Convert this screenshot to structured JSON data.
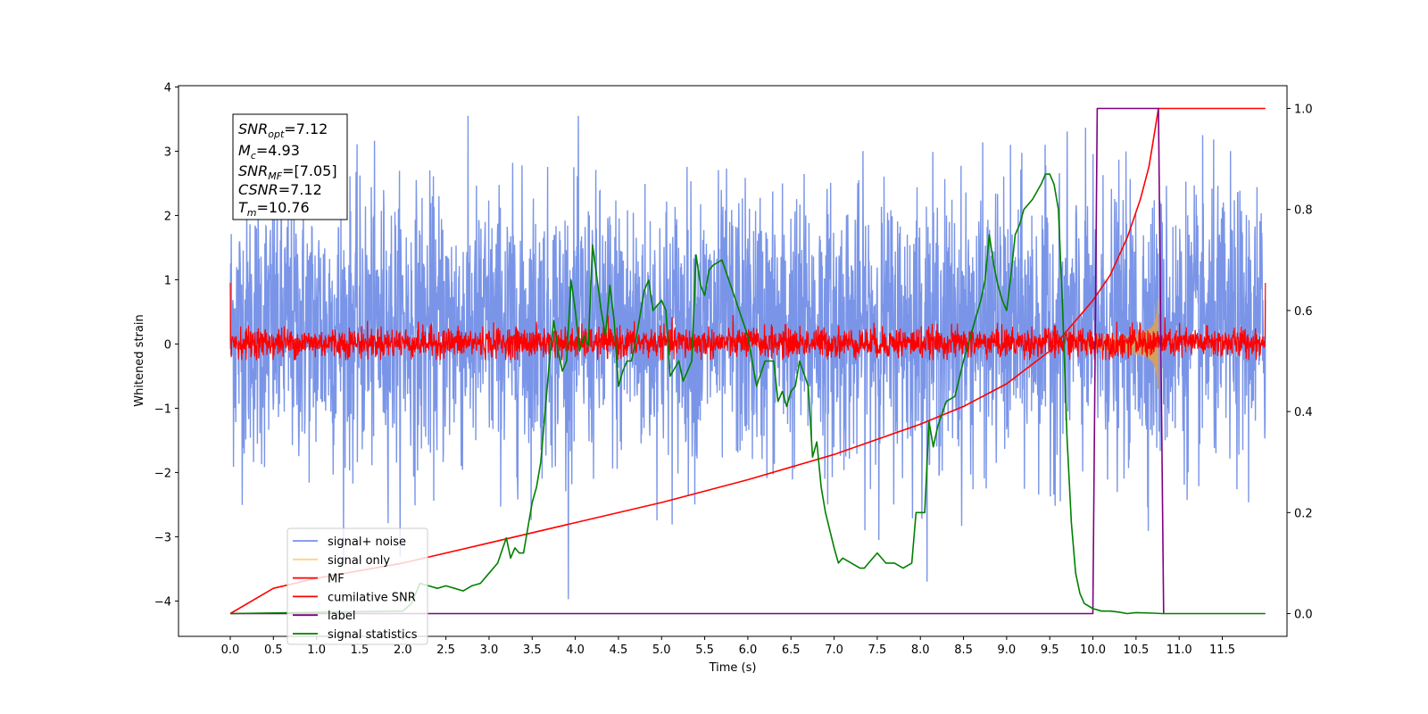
{
  "chart_data": {
    "type": "line",
    "xlabel": "Time (s)",
    "ylabel": "Whitened strain",
    "xlim": [
      -0.6,
      12.25
    ],
    "ylim": [
      -4.55,
      4.02
    ],
    "y2lim": [
      -0.045,
      1.045
    ],
    "x_ticks": [
      0.0,
      0.5,
      1.0,
      1.5,
      2.0,
      2.5,
      3.0,
      3.5,
      4.0,
      4.5,
      5.0,
      5.5,
      6.0,
      6.5,
      7.0,
      7.5,
      8.0,
      8.5,
      9.0,
      9.5,
      10.0,
      10.5,
      11.0,
      11.5
    ],
    "x_tick_labels": [
      "0.0",
      "0.5",
      "1.0",
      "1.5",
      "2.0",
      "2.5",
      "3.0",
      "3.5",
      "4.0",
      "4.5",
      "5.0",
      "5.5",
      "6.0",
      "6.5",
      "7.0",
      "7.5",
      "8.0",
      "8.5",
      "9.0",
      "9.5",
      "10.0",
      "10.5",
      "11.0",
      "11.5"
    ],
    "y_ticks": [
      4,
      3,
      2,
      1,
      0,
      -1,
      -2,
      -3,
      -4
    ],
    "y_tick_labels": [
      "4",
      "3",
      "2",
      "1",
      "0",
      "−1",
      "−2",
      "−3",
      "−4"
    ],
    "y2_ticks": [
      1.0,
      0.8,
      0.6,
      0.4,
      0.2,
      0.0
    ],
    "y2_tick_labels": [
      "1.0",
      "0.8",
      "0.6",
      "0.4",
      "0.2",
      "0.0"
    ],
    "info_box": {
      "snr_opt_main": "SNR",
      "snr_opt_sub": "opt",
      "snr_opt_val": "=7.12",
      "mc_main": "M",
      "mc_sub": "c",
      "mc_val": "=4.93",
      "snr_mf_main": "SNR",
      "snr_mf_sub": "MF",
      "snr_mf_val": "=[7.05]",
      "csnr_main": "CSNR",
      "csnr_val": "=7.12",
      "tm_main": "T",
      "tm_sub": "m",
      "tm_val": "=10.76"
    },
    "legend": {
      "placement": "lower-left",
      "entries": [
        {
          "label": "signal+ noise",
          "color": "#7793e8"
        },
        {
          "label": "signal only",
          "color": "#ffd27f"
        },
        {
          "label": "MF",
          "color": "#ff0000"
        },
        {
          "label": "cumilative SNR",
          "color": "#ff0000"
        },
        {
          "label": "label",
          "color": "#800080"
        },
        {
          "label": "signal statistics",
          "color": "#008000"
        }
      ]
    },
    "series": [
      {
        "name": "signal+ noise",
        "axis": "left",
        "color": "#7793e8",
        "style": "noise",
        "x_range": [
          0.0,
          12.0
        ],
        "y_range": [
          -4.15,
          3.55
        ]
      },
      {
        "name": "signal only",
        "axis": "left",
        "color": "#d4a060",
        "style": "chirp",
        "x_range": [
          9.9,
          10.76
        ],
        "amplitude_max": 0.7
      },
      {
        "name": "MF",
        "axis": "left",
        "color": "#ff0000",
        "style": "noise",
        "x_range": [
          0.0,
          12.0
        ],
        "y_range": [
          -0.25,
          1.0
        ]
      },
      {
        "name": "cumilative SNR",
        "axis": "right",
        "color": "#ff0000",
        "x": [
          0.0,
          0.5,
          1.0,
          2.0,
          3.0,
          4.0,
          5.0,
          6.0,
          7.0,
          8.0,
          8.5,
          9.0,
          9.5,
          10.0,
          10.2,
          10.4,
          10.55,
          10.65,
          10.76,
          11.0,
          12.0
        ],
        "y": [
          0.0,
          0.05,
          0.07,
          0.1,
          0.14,
          0.18,
          0.22,
          0.265,
          0.315,
          0.375,
          0.41,
          0.455,
          0.52,
          0.62,
          0.67,
          0.745,
          0.82,
          0.885,
          1.0,
          1.0,
          1.0
        ]
      },
      {
        "name": "label",
        "axis": "right",
        "color": "#800080",
        "x": [
          0.0,
          10.0,
          10.05,
          10.76,
          10.82
        ],
        "y": [
          0.0,
          0.0,
          1.0,
          1.0,
          0.0
        ]
      },
      {
        "name": "signal statistics",
        "axis": "right",
        "color": "#008000",
        "x": [
          0.0,
          2.0,
          2.1,
          2.2,
          2.3,
          2.4,
          2.5,
          2.6,
          2.7,
          2.8,
          2.9,
          3.0,
          3.1,
          3.2,
          3.25,
          3.3,
          3.35,
          3.4,
          3.5,
          3.55,
          3.6,
          3.65,
          3.7,
          3.75,
          3.8,
          3.85,
          3.9,
          3.95,
          4.0,
          4.05,
          4.1,
          4.15,
          4.2,
          4.3,
          4.35,
          4.4,
          4.45,
          4.5,
          4.55,
          4.6,
          4.65,
          4.7,
          4.8,
          4.85,
          4.9,
          5.0,
          5.05,
          5.1,
          5.2,
          5.25,
          5.3,
          5.35,
          5.4,
          5.45,
          5.5,
          5.55,
          5.6,
          5.7,
          5.8,
          5.9,
          6.0,
          6.1,
          6.2,
          6.3,
          6.35,
          6.4,
          6.45,
          6.5,
          6.55,
          6.6,
          6.7,
          6.75,
          6.8,
          6.85,
          6.9,
          7.0,
          7.05,
          7.1,
          7.2,
          7.3,
          7.35,
          7.4,
          7.5,
          7.6,
          7.7,
          7.8,
          7.9,
          7.95,
          8.0,
          8.05,
          8.1,
          8.15,
          8.2,
          8.3,
          8.4,
          8.5,
          8.6,
          8.7,
          8.75,
          8.8,
          8.85,
          8.9,
          8.95,
          9.0,
          9.05,
          9.1,
          9.15,
          9.2,
          9.3,
          9.4,
          9.45,
          9.5,
          9.55,
          9.6,
          9.65,
          9.7,
          9.75,
          9.8,
          9.85,
          9.9,
          9.95,
          10.0,
          10.1,
          10.2,
          10.3,
          10.4,
          10.5,
          10.7,
          10.8,
          11.0,
          12.0
        ],
        "y": [
          0.0,
          0.005,
          0.02,
          0.06,
          0.055,
          0.05,
          0.055,
          0.05,
          0.045,
          0.055,
          0.06,
          0.08,
          0.1,
          0.15,
          0.11,
          0.13,
          0.12,
          0.12,
          0.22,
          0.25,
          0.3,
          0.4,
          0.5,
          0.58,
          0.52,
          0.48,
          0.5,
          0.66,
          0.6,
          0.52,
          0.55,
          0.53,
          0.73,
          0.6,
          0.55,
          0.65,
          0.58,
          0.45,
          0.48,
          0.5,
          0.5,
          0.54,
          0.64,
          0.66,
          0.6,
          0.62,
          0.6,
          0.47,
          0.5,
          0.46,
          0.48,
          0.5,
          0.71,
          0.65,
          0.63,
          0.68,
          0.69,
          0.7,
          0.65,
          0.6,
          0.55,
          0.45,
          0.5,
          0.5,
          0.42,
          0.44,
          0.41,
          0.44,
          0.45,
          0.5,
          0.45,
          0.31,
          0.34,
          0.25,
          0.2,
          0.13,
          0.1,
          0.11,
          0.1,
          0.09,
          0.09,
          0.1,
          0.12,
          0.1,
          0.1,
          0.09,
          0.1,
          0.2,
          0.2,
          0.2,
          0.38,
          0.33,
          0.37,
          0.42,
          0.43,
          0.5,
          0.56,
          0.62,
          0.66,
          0.75,
          0.69,
          0.65,
          0.62,
          0.6,
          0.67,
          0.75,
          0.77,
          0.8,
          0.82,
          0.85,
          0.87,
          0.87,
          0.85,
          0.8,
          0.6,
          0.35,
          0.18,
          0.08,
          0.04,
          0.02,
          0.015,
          0.01,
          0.005,
          0.005,
          0.003,
          0.0,
          0.002,
          0.001,
          0.0,
          0.0,
          0.0
        ]
      }
    ]
  }
}
